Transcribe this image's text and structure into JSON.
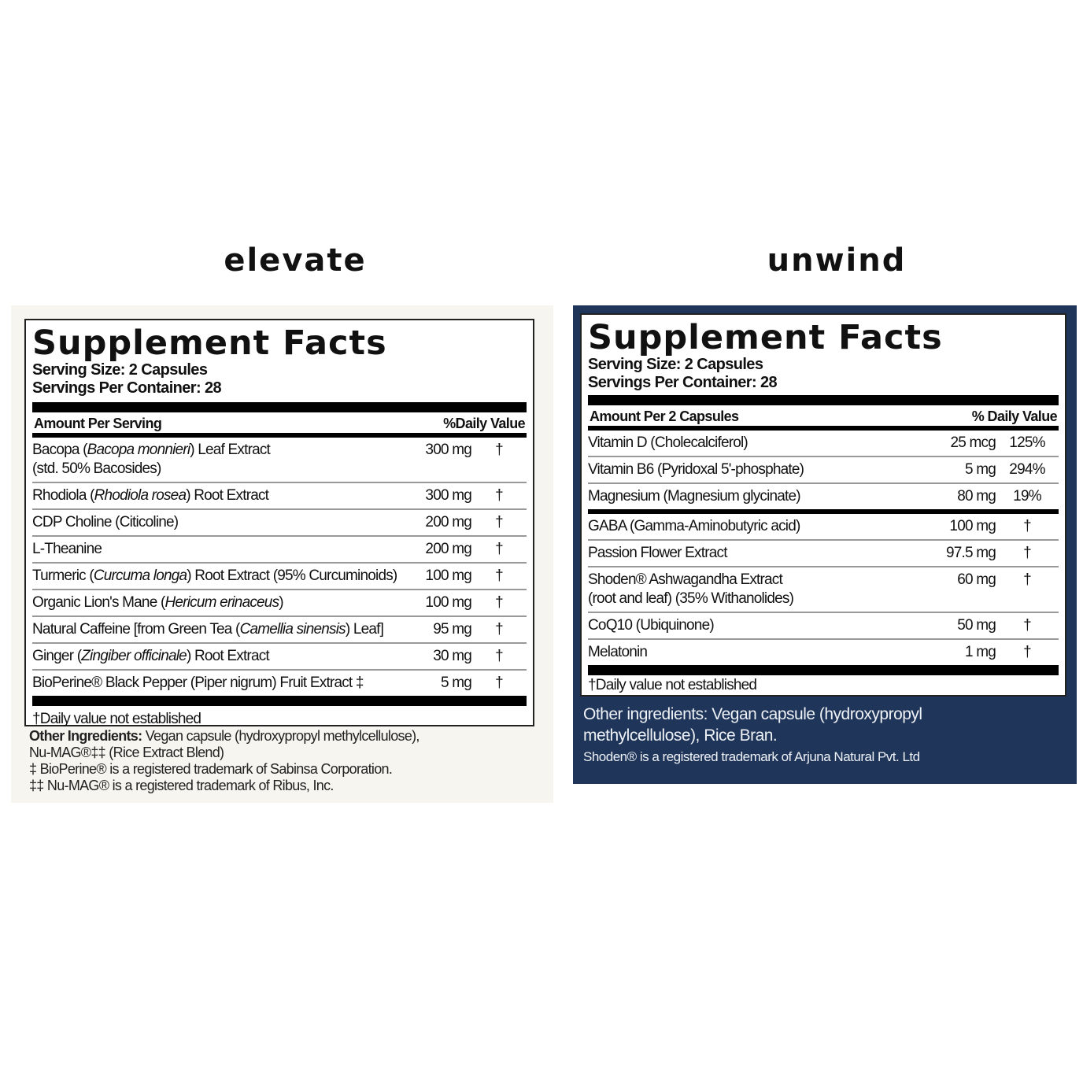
{
  "elevate": {
    "brand": "elevate",
    "title": "Supplement Facts",
    "serving_size": "Serving Size: 2 Capsules",
    "servings_per_container": "Servings Per Container: 28",
    "header_amount": "Amount Per Serving",
    "header_dv": "%Daily Value",
    "rows": [
      {
        "name": [
          {
            "t": "Bacopa ("
          },
          {
            "t": "Bacopa monnieri",
            "i": true
          },
          {
            "t": ") Leaf Extract"
          }
        ],
        "name2": "(std. 50% Bacosides)",
        "amount": "300 mg",
        "dv": "†"
      },
      {
        "name": [
          {
            "t": "Rhodiola ("
          },
          {
            "t": "Rhodiola rosea",
            "i": true
          },
          {
            "t": ") Root Extract"
          }
        ],
        "amount": "300 mg",
        "dv": "†"
      },
      {
        "name": [
          {
            "t": "CDP Choline (Citicoline)"
          }
        ],
        "amount": "200 mg",
        "dv": "†"
      },
      {
        "name": [
          {
            "t": "L-Theanine"
          }
        ],
        "amount": "200 mg",
        "dv": "†"
      },
      {
        "name": [
          {
            "t": "Turmeric ("
          },
          {
            "t": "Curcuma longa",
            "i": true
          },
          {
            "t": ") Root Extract (95% Curcuminoids)"
          }
        ],
        "amount": "100 mg",
        "dv": "†"
      },
      {
        "name": [
          {
            "t": "Organic Lion's Mane ("
          },
          {
            "t": "Hericum erinaceus",
            "i": true
          },
          {
            "t": ")"
          }
        ],
        "amount": "100 mg",
        "dv": "†"
      },
      {
        "name": [
          {
            "t": "Natural Caffeine [from Green Tea ("
          },
          {
            "t": "Camellia sinensis",
            "i": true
          },
          {
            "t": ") Leaf]"
          }
        ],
        "amount": "95 mg",
        "dv": "†"
      },
      {
        "name": [
          {
            "t": "Ginger ("
          },
          {
            "t": "Zingiber officinale",
            "i": true
          },
          {
            "t": ") Root Extract"
          }
        ],
        "amount": "30 mg",
        "dv": "†"
      },
      {
        "name": [
          {
            "t": "BioPerine® Black Pepper (Piper nigrum) Fruit Extract ‡"
          }
        ],
        "amount": "5 mg",
        "dv": "†"
      }
    ],
    "footnote": "†Daily value not established",
    "other_label": "Other Ingredients:",
    "other_text": " Vegan capsule (hydroxypropyl methylcellulose),",
    "other_text2": "Nu-MAG®‡‡ (Rice Extract Blend)",
    "tm1": "‡ BioPerine® is a registered trademark of Sabinsa Corporation.",
    "tm2": "‡‡ Nu-MAG® is a registered trademark of Ribus, Inc."
  },
  "unwind": {
    "brand": "unwind",
    "title": "Supplement Facts",
    "serving_size": "Serving Size: 2 Capsules",
    "servings_per_container": "Servings Per Container: 28",
    "header_amount": "Amount Per 2 Capsules",
    "header_dv": "% Daily Value",
    "rows": [
      {
        "name": [
          {
            "t": "Vitamin D (Cholecalciferol)"
          }
        ],
        "amount": "25 mcg",
        "dv": "125%"
      },
      {
        "name": [
          {
            "t": "Vitamin B6 (Pyridoxal 5'-phosphate)"
          }
        ],
        "amount": "5 mg",
        "dv": "294%"
      },
      {
        "name": [
          {
            "t": "Magnesium (Magnesium glycinate)"
          }
        ],
        "amount": "80 mg",
        "dv": "19%",
        "sep": true
      },
      {
        "name": [
          {
            "t": "GABA (Gamma-Aminobutyric acid)"
          }
        ],
        "amount": "100 mg",
        "dv": "†"
      },
      {
        "name": [
          {
            "t": "Passion Flower Extract"
          }
        ],
        "amount": "97.5 mg",
        "dv": "†"
      },
      {
        "name": [
          {
            "t": "Shoden® Ashwagandha Extract"
          }
        ],
        "name2": "(root and leaf) (35% Withanolides)",
        "amount": "60 mg",
        "dv": "†"
      },
      {
        "name": [
          {
            "t": "CoQ10 (Ubiquinone)"
          }
        ],
        "amount": "50 mg",
        "dv": "†"
      },
      {
        "name": [
          {
            "t": "Melatonin"
          }
        ],
        "amount": "1 mg",
        "dv": "†"
      }
    ],
    "footnote": "†Daily value not established",
    "other_line1": "Other ingredients:  Vegan capsule (hydroxypropyl",
    "other_line2": "methylcellulose), Rice Bran.",
    "tm": "Shoden® is a registered trademark of Arjuna Natural Pvt. Ltd"
  },
  "colors": {
    "unwind_panel": "#1f3559",
    "elevate_panel": "#f7f5ef"
  }
}
